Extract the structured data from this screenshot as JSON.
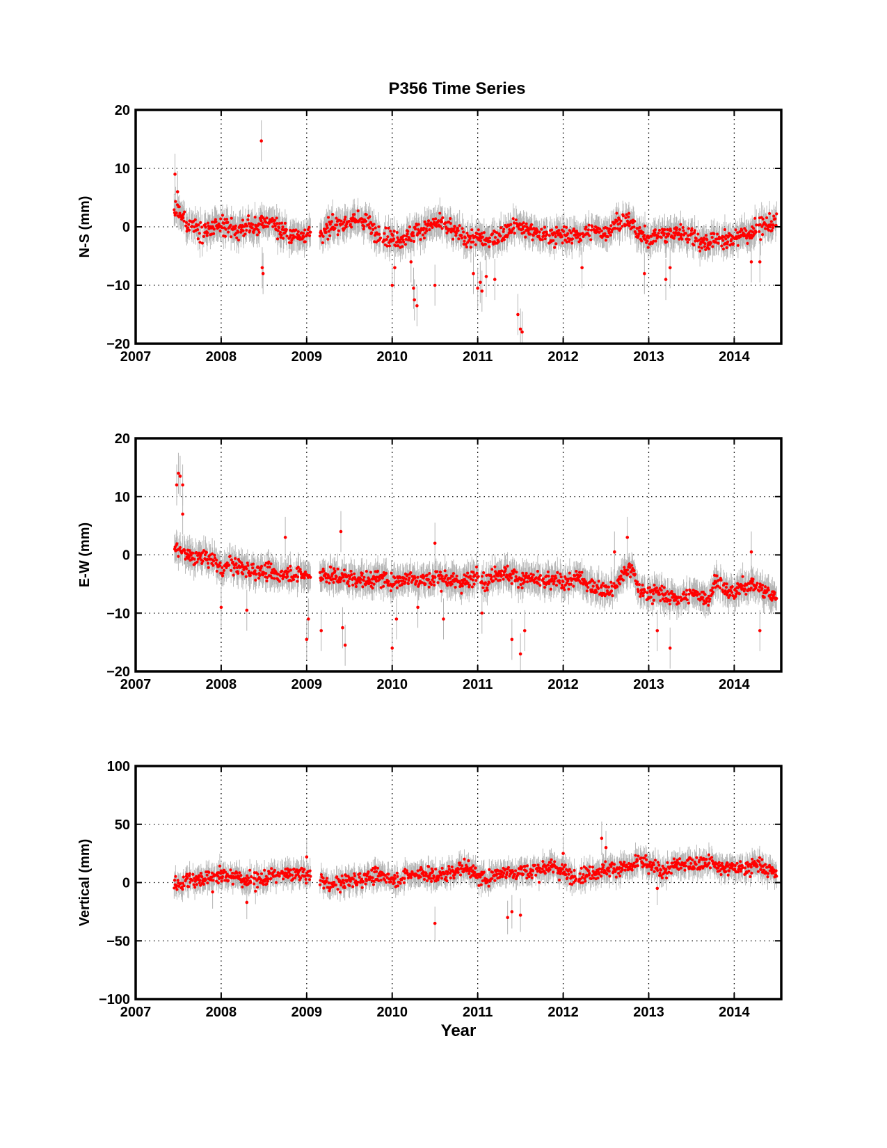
{
  "figure_title": "P356 Time Series",
  "chart_data": [
    {
      "type": "scatter",
      "title": "P356 Time Series",
      "xlabel": "",
      "ylabel": "N-S (mm)",
      "xlim": [
        2007,
        2014.55
      ],
      "ylim": [
        -20,
        20
      ],
      "xticks": [
        "2007",
        "2008",
        "2009",
        "2010",
        "2011",
        "2012",
        "2013",
        "2014"
      ],
      "yticks": [
        "20",
        "10",
        "0",
        "−10",
        "−20"
      ],
      "grid": true,
      "point_color": "#ff0000",
      "errorbar_color": "#b4b4b4",
      "data_gap": [
        2009.05,
        2009.15
      ],
      "series": [
        {
          "x": [
            2007.45,
            2007.5,
            2007.55,
            2007.6,
            2007.7,
            2007.8,
            2007.9,
            2008.0,
            2008.1,
            2008.2,
            2008.3,
            2008.4,
            2008.5,
            2008.6,
            2008.7,
            2008.8,
            2008.9,
            2009.0,
            2009.2,
            2009.3,
            2009.4,
            2009.5,
            2009.6,
            2009.7,
            2009.8,
            2009.9,
            2010.0,
            2010.1,
            2010.2,
            2010.3,
            2010.4,
            2010.5,
            2010.6,
            2010.7,
            2010.8,
            2010.9,
            2011.0,
            2011.1,
            2011.2,
            2011.3,
            2011.4,
            2011.5,
            2011.6,
            2011.7,
            2011.8,
            2011.9,
            2012.0,
            2012.1,
            2012.2,
            2012.3,
            2012.4,
            2012.5,
            2012.6,
            2012.7,
            2012.8,
            2012.9,
            2013.0,
            2013.1,
            2013.2,
            2013.3,
            2013.4,
            2013.5,
            2013.6,
            2013.7,
            2013.8,
            2013.9,
            2014.0,
            2014.1,
            2014.2,
            2014.3,
            2014.4,
            2014.5
          ],
          "y": [
            3.0,
            2.5,
            1.5,
            0.5,
            0.0,
            -0.5,
            -0.5,
            0.0,
            0.0,
            -0.5,
            0.0,
            0.0,
            0.5,
            1.0,
            -0.5,
            -1.5,
            -1.5,
            -1.0,
            -1.0,
            0.0,
            0.5,
            1.0,
            1.0,
            1.0,
            -1.0,
            -1.5,
            -2.0,
            -2.0,
            -1.5,
            -0.5,
            0.0,
            0.5,
            0.5,
            -0.5,
            -1.5,
            -2.0,
            -2.0,
            -2.5,
            -2.0,
            -1.0,
            0.0,
            0.0,
            -0.5,
            -1.5,
            -1.5,
            -1.5,
            -1.5,
            -1.5,
            -1.5,
            -1.0,
            -1.0,
            -1.0,
            0.5,
            1.0,
            0.5,
            -1.5,
            -2.0,
            -1.5,
            -1.5,
            -1.0,
            -1.0,
            -1.5,
            -2.5,
            -2.5,
            -2.0,
            -2.5,
            -2.0,
            -1.5,
            -1.0,
            0.0,
            0.5,
            0.5
          ],
          "noise": 1.3,
          "errorbar": 2.2
        }
      ],
      "outliers": {
        "x": [
          2007.46,
          2007.49,
          2008.47,
          2008.48,
          2008.49,
          2010.0,
          2010.03,
          2010.22,
          2010.25,
          2010.26,
          2010.29,
          2010.5,
          2010.95,
          2011.0,
          2011.03,
          2011.05,
          2011.1,
          2011.2,
          2011.47,
          2011.5,
          2011.52,
          2012.22,
          2012.95,
          2013.2,
          2013.25,
          2014.2,
          2014.3
        ],
        "y": [
          9.0,
          6.0,
          14.7,
          -7.0,
          -8.0,
          -10.0,
          -7.0,
          -6.0,
          -10.5,
          -12.5,
          -13.5,
          -10.0,
          -8.0,
          -10.5,
          -9.5,
          -11.0,
          -8.5,
          -9.0,
          -15.0,
          -17.5,
          -18.0,
          -7.0,
          -8.0,
          -9.0,
          -7.0,
          -6.0,
          -6.0
        ]
      }
    },
    {
      "type": "scatter",
      "title": "",
      "xlabel": "",
      "ylabel": "E-W (mm)",
      "xlim": [
        2007,
        2014.55
      ],
      "ylim": [
        -20,
        20
      ],
      "xticks": [
        "2007",
        "2008",
        "2009",
        "2010",
        "2011",
        "2012",
        "2013",
        "2014"
      ],
      "yticks": [
        "20",
        "10",
        "0",
        "−10",
        "−20"
      ],
      "grid": true,
      "point_color": "#ff0000",
      "errorbar_color": "#b4b4b4",
      "data_gap": [
        2009.05,
        2009.15
      ],
      "series": [
        {
          "x": [
            2007.45,
            2007.5,
            2007.6,
            2007.7,
            2007.8,
            2007.9,
            2008.0,
            2008.1,
            2008.2,
            2008.3,
            2008.4,
            2008.5,
            2008.6,
            2008.7,
            2008.8,
            2008.9,
            2009.0,
            2009.2,
            2009.3,
            2009.4,
            2009.5,
            2009.6,
            2009.7,
            2009.8,
            2009.9,
            2010.0,
            2010.1,
            2010.2,
            2010.3,
            2010.4,
            2010.5,
            2010.6,
            2010.7,
            2010.8,
            2010.9,
            2011.0,
            2011.1,
            2011.2,
            2011.3,
            2011.4,
            2011.5,
            2011.6,
            2011.7,
            2011.8,
            2011.9,
            2012.0,
            2012.1,
            2012.2,
            2012.3,
            2012.4,
            2012.5,
            2012.6,
            2012.7,
            2012.8,
            2012.9,
            2013.0,
            2013.1,
            2013.2,
            2013.3,
            2013.4,
            2013.5,
            2013.6,
            2013.7,
            2013.8,
            2013.9,
            2014.0,
            2014.1,
            2014.2,
            2014.3,
            2014.4,
            2014.5
          ],
          "y": [
            0.5,
            1.0,
            0.0,
            -0.5,
            -0.5,
            -1.0,
            -2.5,
            -1.5,
            -2.0,
            -2.5,
            -2.5,
            -3.0,
            -3.0,
            -3.5,
            -3.0,
            -3.5,
            -3.5,
            -3.5,
            -3.5,
            -4.0,
            -4.0,
            -4.0,
            -4.5,
            -4.0,
            -4.0,
            -4.5,
            -4.5,
            -4.0,
            -4.0,
            -4.5,
            -4.0,
            -4.0,
            -4.5,
            -4.5,
            -4.5,
            -3.0,
            -5.0,
            -3.0,
            -3.0,
            -3.5,
            -4.0,
            -4.0,
            -4.5,
            -4.5,
            -4.5,
            -4.5,
            -4.5,
            -4.0,
            -5.5,
            -5.5,
            -6.0,
            -6.0,
            -3.0,
            -2.5,
            -6.5,
            -6.5,
            -6.5,
            -7.0,
            -7.5,
            -7.5,
            -7.0,
            -7.0,
            -7.5,
            -4.0,
            -6.5,
            -6.5,
            -5.5,
            -5.0,
            -6.0,
            -6.5,
            -7.5
          ],
          "noise": 1.2,
          "errorbar": 2.2
        }
      ],
      "outliers": {
        "x": [
          2007.48,
          2007.5,
          2007.52,
          2007.55,
          2007.55,
          2008.0,
          2008.3,
          2008.75,
          2009.0,
          2009.02,
          2009.17,
          2009.4,
          2009.45,
          2009.42,
          2010.0,
          2010.05,
          2010.3,
          2010.5,
          2010.6,
          2011.05,
          2011.4,
          2011.5,
          2011.55,
          2012.6,
          2012.75,
          2013.1,
          2013.25,
          2014.2,
          2014.3
        ],
        "y": [
          12.0,
          14.0,
          13.5,
          12.0,
          7.0,
          -9.0,
          -9.5,
          3.0,
          -14.5,
          -11.0,
          -13.0,
          4.0,
          -15.5,
          -12.5,
          -16.0,
          -11.0,
          -9.0,
          2.0,
          -11.0,
          -10.0,
          -14.5,
          -17.0,
          -13.0,
          0.5,
          3.0,
          -13.0,
          -16.0,
          0.5,
          -13.0
        ]
      }
    },
    {
      "type": "scatter",
      "title": "",
      "xlabel": "Year",
      "ylabel": "Vertical (mm)",
      "xlim": [
        2007,
        2014.55
      ],
      "ylim": [
        -100,
        100
      ],
      "xticks": [
        "2007",
        "2008",
        "2009",
        "2010",
        "2011",
        "2012",
        "2013",
        "2014"
      ],
      "yticks": [
        "100",
        "50",
        "0",
        "−50",
        "−100"
      ],
      "grid": true,
      "point_color": "#ff0000",
      "errorbar_color": "#b4b4b4",
      "data_gap": [
        2009.05,
        2009.15
      ],
      "series": [
        {
          "x": [
            2007.45,
            2007.5,
            2007.6,
            2007.7,
            2007.8,
            2007.9,
            2008.0,
            2008.1,
            2008.2,
            2008.3,
            2008.4,
            2008.5,
            2008.6,
            2008.7,
            2008.8,
            2008.9,
            2009.0,
            2009.2,
            2009.3,
            2009.4,
            2009.5,
            2009.6,
            2009.7,
            2009.8,
            2009.9,
            2010.0,
            2010.1,
            2010.2,
            2010.3,
            2010.4,
            2010.5,
            2010.6,
            2010.7,
            2010.8,
            2010.9,
            2011.0,
            2011.1,
            2011.2,
            2011.3,
            2011.4,
            2011.5,
            2011.6,
            2011.7,
            2011.8,
            2011.9,
            2012.0,
            2012.1,
            2012.2,
            2012.3,
            2012.4,
            2012.5,
            2012.6,
            2012.7,
            2012.8,
            2012.9,
            2013.0,
            2013.1,
            2013.2,
            2013.3,
            2013.4,
            2013.5,
            2013.6,
            2013.7,
            2013.8,
            2013.9,
            2014.0,
            2014.1,
            2014.2,
            2014.3,
            2014.4,
            2014.5
          ],
          "y": [
            0.0,
            -2.0,
            2.0,
            3.0,
            4.0,
            5.0,
            6.0,
            5.0,
            4.0,
            2.0,
            2.0,
            3.0,
            5.0,
            7.0,
            8.0,
            7.0,
            6.0,
            0.0,
            -2.0,
            0.0,
            2.0,
            3.0,
            5.0,
            5.0,
            7.0,
            2.0,
            4.0,
            6.0,
            8.0,
            8.0,
            5.0,
            6.0,
            10.0,
            12.0,
            13.0,
            5.0,
            4.0,
            7.0,
            8.0,
            9.0,
            10.0,
            9.0,
            10.0,
            13.0,
            14.0,
            10.0,
            5.0,
            6.0,
            8.0,
            10.0,
            12.0,
            12.0,
            14.0,
            12.0,
            20.0,
            14.0,
            12.0,
            10.0,
            14.0,
            15.0,
            16.0,
            17.0,
            18.0,
            14.0,
            12.0,
            12.0,
            12.0,
            14.0,
            15.0,
            10.0,
            9.0
          ],
          "noise": 5.5,
          "errorbar": 9.0
        }
      ],
      "outliers": {
        "x": [
          2007.9,
          2008.3,
          2009.0,
          2010.5,
          2011.35,
          2011.4,
          2011.5,
          2012.0,
          2012.45,
          2012.5,
          2013.1
        ],
        "y": [
          -8.0,
          -17.0,
          22.0,
          -35.0,
          -30.0,
          -25.0,
          -28.0,
          25.0,
          38.0,
          30.0,
          -5.0
        ]
      }
    }
  ]
}
